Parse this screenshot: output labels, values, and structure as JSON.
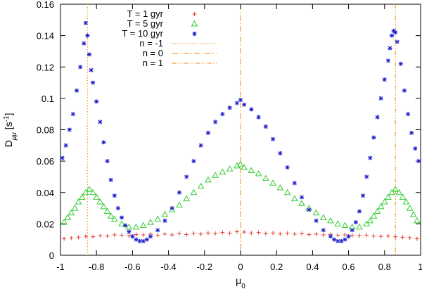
{
  "chart_data": {
    "type": "scatter",
    "title": "",
    "xlabel_main": "μ",
    "xlabel_sub": "0",
    "ylabel_main": "D",
    "ylabel_sub": "μμ",
    "ylabel_unit_open": "[s",
    "ylabel_unit_sup": "-1",
    "ylabel_unit_close": "]",
    "xlim": [
      -1,
      1
    ],
    "ylim": [
      0,
      0.16
    ],
    "legend_position": "top-left",
    "x_ticks": [
      -1,
      -0.8,
      -0.6,
      -0.4,
      -0.2,
      0,
      0.2,
      0.4,
      0.6,
      0.8,
      1
    ],
    "x_tick_labels": [
      "-1",
      "-0.8",
      "-0.6",
      "-0.4",
      "-0.2",
      "0",
      "0.2",
      "0.4",
      "0.6",
      "0.8",
      "1"
    ],
    "y_ticks": [
      0,
      0.02,
      0.04,
      0.06,
      0.08,
      0.1,
      0.12,
      0.14,
      0.16
    ],
    "y_tick_labels": [
      "0",
      "0.02",
      "0.04",
      "0.06",
      "0.08",
      "0.1",
      "0.12",
      "0.14",
      "0.16"
    ],
    "series": [
      {
        "name": "T = 1 gyr",
        "marker": "plus",
        "color": "#e8402f",
        "x": [
          -0.98,
          -0.94,
          -0.9,
          -0.86,
          -0.82,
          -0.78,
          -0.74,
          -0.7,
          -0.66,
          -0.62,
          -0.58,
          -0.54,
          -0.5,
          -0.46,
          -0.42,
          -0.38,
          -0.34,
          -0.3,
          -0.26,
          -0.22,
          -0.18,
          -0.14,
          -0.1,
          -0.06,
          -0.02,
          0.02,
          0.06,
          0.1,
          0.14,
          0.18,
          0.22,
          0.26,
          0.3,
          0.34,
          0.38,
          0.42,
          0.46,
          0.5,
          0.54,
          0.58,
          0.62,
          0.66,
          0.7,
          0.74,
          0.78,
          0.82,
          0.86,
          0.9,
          0.94,
          0.98
        ],
        "y": [
          0.0105,
          0.011,
          0.0115,
          0.012,
          0.0118,
          0.0125,
          0.0122,
          0.013,
          0.0128,
          0.0125,
          0.0132,
          0.013,
          0.0135,
          0.0128,
          0.0135,
          0.013,
          0.0138,
          0.0132,
          0.014,
          0.0135,
          0.0142,
          0.0138,
          0.0145,
          0.014,
          0.015,
          0.0148,
          0.0142,
          0.0145,
          0.0138,
          0.0142,
          0.0136,
          0.014,
          0.0135,
          0.0138,
          0.0132,
          0.0135,
          0.013,
          0.0133,
          0.0128,
          0.013,
          0.0127,
          0.0125,
          0.0128,
          0.0122,
          0.012,
          0.0122,
          0.0118,
          0.0115,
          0.0112,
          0.0105
        ]
      },
      {
        "name": "T = 5 gyr",
        "marker": "triangle",
        "color": "#33cc33",
        "x": [
          -0.98,
          -0.96,
          -0.94,
          -0.92,
          -0.9,
          -0.88,
          -0.86,
          -0.84,
          -0.82,
          -0.8,
          -0.78,
          -0.76,
          -0.74,
          -0.72,
          -0.7,
          -0.66,
          -0.62,
          -0.58,
          -0.54,
          -0.5,
          -0.46,
          -0.42,
          -0.38,
          -0.34,
          -0.3,
          -0.26,
          -0.22,
          -0.18,
          -0.14,
          -0.1,
          -0.06,
          -0.02,
          0.0,
          0.02,
          0.06,
          0.1,
          0.14,
          0.18,
          0.22,
          0.26,
          0.3,
          0.34,
          0.38,
          0.42,
          0.46,
          0.5,
          0.54,
          0.58,
          0.62,
          0.66,
          0.7,
          0.72,
          0.74,
          0.76,
          0.78,
          0.8,
          0.82,
          0.84,
          0.86,
          0.88,
          0.9,
          0.92,
          0.94,
          0.96,
          0.98
        ],
        "y": [
          0.021,
          0.024,
          0.027,
          0.03,
          0.034,
          0.037,
          0.04,
          0.042,
          0.04,
          0.037,
          0.034,
          0.031,
          0.028,
          0.025,
          0.023,
          0.02,
          0.018,
          0.018,
          0.019,
          0.021,
          0.023,
          0.026,
          0.029,
          0.032,
          0.036,
          0.04,
          0.044,
          0.048,
          0.051,
          0.053,
          0.055,
          0.057,
          0.058,
          0.056,
          0.054,
          0.052,
          0.049,
          0.046,
          0.043,
          0.04,
          0.036,
          0.033,
          0.03,
          0.027,
          0.024,
          0.022,
          0.02,
          0.019,
          0.018,
          0.018,
          0.02,
          0.022,
          0.025,
          0.028,
          0.031,
          0.034,
          0.037,
          0.04,
          0.042,
          0.04,
          0.037,
          0.034,
          0.03,
          0.026,
          0.022
        ]
      },
      {
        "name": "T = 10 gyr",
        "marker": "star",
        "color": "#1a1acc",
        "x": [
          -0.99,
          -0.97,
          -0.95,
          -0.93,
          -0.91,
          -0.89,
          -0.87,
          -0.86,
          -0.85,
          -0.84,
          -0.83,
          -0.82,
          -0.8,
          -0.78,
          -0.76,
          -0.74,
          -0.72,
          -0.7,
          -0.68,
          -0.66,
          -0.64,
          -0.62,
          -0.6,
          -0.58,
          -0.56,
          -0.54,
          -0.52,
          -0.5,
          -0.46,
          -0.42,
          -0.38,
          -0.34,
          -0.3,
          -0.26,
          -0.22,
          -0.18,
          -0.14,
          -0.1,
          -0.06,
          -0.02,
          0.0,
          0.02,
          0.06,
          0.1,
          0.14,
          0.18,
          0.22,
          0.26,
          0.3,
          0.34,
          0.38,
          0.42,
          0.46,
          0.5,
          0.52,
          0.54,
          0.56,
          0.58,
          0.6,
          0.62,
          0.64,
          0.66,
          0.68,
          0.7,
          0.72,
          0.74,
          0.76,
          0.78,
          0.8,
          0.82,
          0.83,
          0.84,
          0.85,
          0.86,
          0.87,
          0.89,
          0.91,
          0.93,
          0.95,
          0.97,
          0.99
        ],
        "y": [
          0.062,
          0.07,
          0.08,
          0.09,
          0.105,
          0.12,
          0.135,
          0.148,
          0.14,
          0.128,
          0.118,
          0.11,
          0.098,
          0.085,
          0.072,
          0.06,
          0.048,
          0.038,
          0.03,
          0.024,
          0.019,
          0.015,
          0.012,
          0.01,
          0.009,
          0.009,
          0.01,
          0.012,
          0.016,
          0.022,
          0.03,
          0.04,
          0.05,
          0.06,
          0.07,
          0.078,
          0.085,
          0.09,
          0.094,
          0.097,
          0.099,
          0.096,
          0.093,
          0.088,
          0.082,
          0.074,
          0.065,
          0.056,
          0.046,
          0.037,
          0.029,
          0.022,
          0.016,
          0.012,
          0.01,
          0.009,
          0.009,
          0.01,
          0.012,
          0.016,
          0.021,
          0.028,
          0.038,
          0.05,
          0.062,
          0.075,
          0.088,
          0.1,
          0.112,
          0.124,
          0.132,
          0.14,
          0.143,
          0.142,
          0.136,
          0.122,
          0.105,
          0.09,
          0.078,
          0.068,
          0.06
        ]
      }
    ],
    "vertical_lines": [
      {
        "name": "n = -1",
        "x": -0.85,
        "style": "dotted",
        "color": "#f0a030"
      },
      {
        "name": "n = 0",
        "x": 0.0,
        "style": "dashdot",
        "color": "#f0a030"
      },
      {
        "name": "n = 1",
        "x": 0.86,
        "style": "dashdotdot",
        "color": "#f0a030"
      }
    ]
  }
}
